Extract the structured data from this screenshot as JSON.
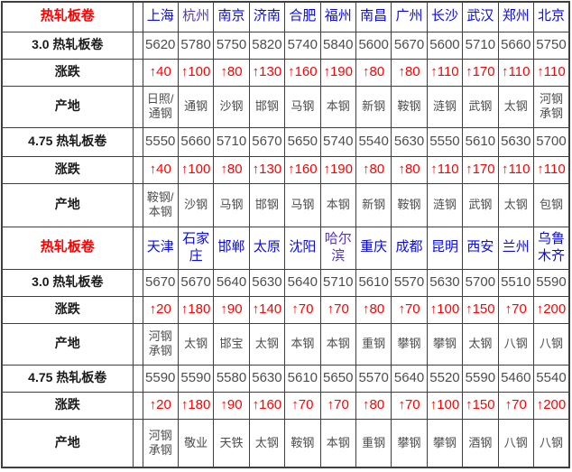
{
  "colors": {
    "section_title": "#ff0000",
    "change_up": "#ff0000",
    "city_link": "#0a0ae8",
    "city_link_visited": "#5533cb",
    "value_text": "#4d4d4d",
    "label_text": "#1a1a1a",
    "border": "#3f3f3f",
    "background": "#ffffff"
  },
  "icons": {
    "up_arrow": "↑"
  },
  "chart_data": {
    "type": "table",
    "sections": [
      {
        "header": {
          "label": "热轧板卷",
          "cities": [
            "上海",
            "杭州",
            "南京",
            "济南",
            "合肥",
            "福州",
            "南昌",
            "广州",
            "长沙",
            "武汉",
            "郑州",
            "北京"
          ],
          "visited_city_indexes": [
            1
          ]
        },
        "rows": [
          {
            "label": "3.0 热轧板卷",
            "type": "price",
            "values": [
              "5620",
              "5780",
              "5750",
              "5820",
              "5740",
              "5840",
              "5600",
              "5670",
              "5600",
              "5710",
              "5660",
              "5750"
            ]
          },
          {
            "label": "涨跌",
            "type": "change",
            "values": [
              "↑40",
              "↑100",
              "↑80",
              "↑130",
              "↑160",
              "↑190",
              "↑80",
              "↑80",
              "↑110",
              "↑170",
              "↑110",
              "↑110"
            ]
          },
          {
            "label": "产地",
            "type": "origin",
            "values": [
              "日照/通钢",
              "通钢",
              "沙钢",
              "邯钢",
              "马钢",
              "本钢",
              "新钢",
              "鞍钢",
              "涟钢",
              "武钢",
              "太钢",
              "河钢承钢"
            ]
          },
          {
            "label": "4.75 热轧板卷",
            "type": "price",
            "values": [
              "5550",
              "5660",
              "5710",
              "5670",
              "5650",
              "5740",
              "5540",
              "5630",
              "5550",
              "5610",
              "5630",
              "5700"
            ]
          },
          {
            "label": "涨跌",
            "type": "change",
            "values": [
              "↑40",
              "↑100",
              "↑80",
              "↑130",
              "↑160",
              "↑190",
              "↑80",
              "↑80",
              "↑110",
              "↑170",
              "↑110",
              "↑110"
            ]
          },
          {
            "label": "产地",
            "type": "origin",
            "values": [
              "鞍钢/本钢",
              "沙钢",
              "马钢",
              "邯钢",
              "马钢",
              "本钢",
              "新钢",
              "鞍钢",
              "涟钢",
              "武钢",
              "太钢",
              "包钢"
            ]
          }
        ]
      },
      {
        "header": {
          "label": "热轧板卷",
          "cities": [
            "天津",
            "石家庄",
            "邯郸",
            "太原",
            "沈阳",
            "哈尔滨",
            "重庆",
            "成都",
            "昆明",
            "西安",
            "兰州",
            "乌鲁木齐"
          ],
          "visited_city_indexes": [
            5
          ]
        },
        "rows": [
          {
            "label": "3.0 热轧板卷",
            "type": "price",
            "values": [
              "5670",
              "5670",
              "5640",
              "5630",
              "5640",
              "5710",
              "5610",
              "5570",
              "5630",
              "5700",
              "5510",
              "5590"
            ]
          },
          {
            "label": "涨跌",
            "type": "change",
            "values": [
              "↑20",
              "↑180",
              "↑90",
              "↑140",
              "↑70",
              "↑70",
              "↑80",
              "↑70",
              "↑100",
              "↑150",
              "↑70",
              "↑200"
            ]
          },
          {
            "label": "产地",
            "type": "origin",
            "values": [
              "河钢承钢",
              "太钢",
              "邯宝",
              "太钢",
              "本钢",
              "本钢",
              "重钢",
              "攀钢",
              "攀钢",
              "太钢",
              "八钢",
              "八钢"
            ]
          },
          {
            "label": "4.75 热轧板卷",
            "type": "price",
            "values": [
              "5590",
              "5590",
              "5580",
              "5630",
              "5610",
              "5650",
              "5570",
              "5640",
              "5520",
              "5590",
              "5460",
              "5540"
            ]
          },
          {
            "label": "涨跌",
            "type": "change",
            "values": [
              "↑20",
              "↑180",
              "↑90",
              "↑160",
              "↑70",
              "↑70",
              "↑80",
              "↑70",
              "↑100",
              "↑150",
              "↑70",
              "↑200"
            ]
          },
          {
            "label": "产地",
            "type": "origin",
            "values": [
              "河钢承钢",
              "敬业",
              "天铁",
              "太钢",
              "鞍钢",
              "本钢",
              "重钢",
              "攀钢",
              "攀钢",
              "酒钢",
              "八钢",
              "八钢"
            ]
          }
        ]
      }
    ]
  }
}
